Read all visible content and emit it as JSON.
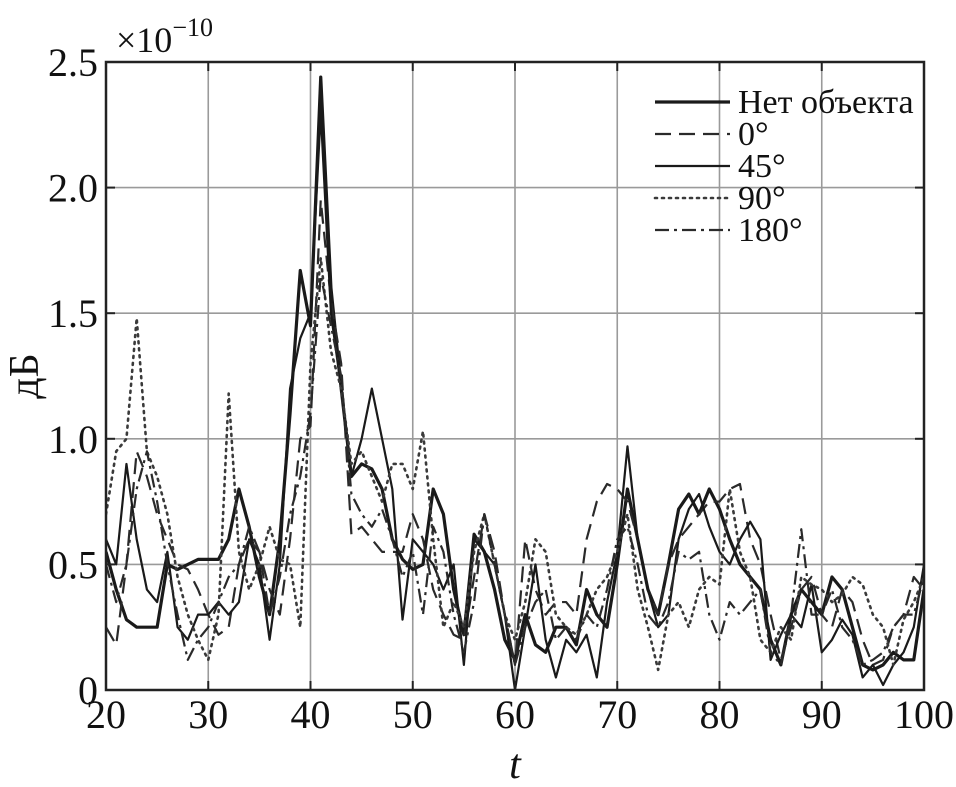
{
  "chart_data": {
    "type": "line",
    "xlabel": "t",
    "ylabel": "дБ",
    "multiplier": "×10",
    "multiplier_exp": "−10",
    "xlim": [
      20,
      100
    ],
    "ylim": [
      0,
      2.5
    ],
    "xticks": [
      20,
      30,
      40,
      50,
      60,
      70,
      80,
      90,
      100
    ],
    "yticks": [
      0,
      0.5,
      1.0,
      1.5,
      2.0,
      2.5
    ],
    "xtick_labels": [
      "20",
      "30",
      "40",
      "50",
      "60",
      "70",
      "80",
      "90",
      "100"
    ],
    "ytick_labels": [
      "0",
      "0.5",
      "1.0",
      "1.5",
      "2.0",
      "2.5"
    ],
    "grid": true,
    "legend_position": "top-right",
    "x": [
      20,
      21,
      22,
      23,
      24,
      25,
      26,
      27,
      28,
      29,
      30,
      31,
      32,
      33,
      34,
      35,
      36,
      37,
      38,
      39,
      40,
      41,
      42,
      43,
      44,
      45,
      46,
      47,
      48,
      49,
      50,
      51,
      52,
      53,
      54,
      55,
      56,
      57,
      58,
      59,
      60,
      61,
      62,
      63,
      64,
      65,
      66,
      67,
      68,
      69,
      70,
      71,
      72,
      73,
      74,
      75,
      76,
      77,
      78,
      79,
      80,
      81,
      82,
      83,
      84,
      85,
      86,
      87,
      88,
      89,
      90,
      91,
      92,
      93,
      94,
      95,
      96,
      97,
      98,
      99,
      100
    ],
    "series": [
      {
        "name": "Нет объекта",
        "style": "solid",
        "width": 3.2,
        "values": [
          0.55,
          0.4,
          0.28,
          0.25,
          0.25,
          0.25,
          0.5,
          0.48,
          0.5,
          0.52,
          0.52,
          0.52,
          0.6,
          0.8,
          0.65,
          0.45,
          0.3,
          0.6,
          1.1,
          1.67,
          1.45,
          2.44,
          1.6,
          1.2,
          0.85,
          0.9,
          0.88,
          0.8,
          0.6,
          0.52,
          0.48,
          0.5,
          0.8,
          0.7,
          0.4,
          0.22,
          0.62,
          0.55,
          0.4,
          0.2,
          0.12,
          0.3,
          0.18,
          0.15,
          0.25,
          0.25,
          0.18,
          0.4,
          0.3,
          0.25,
          0.5,
          0.8,
          0.6,
          0.4,
          0.3,
          0.5,
          0.72,
          0.78,
          0.7,
          0.8,
          0.72,
          0.6,
          0.5,
          0.45,
          0.4,
          0.2,
          0.1,
          0.3,
          0.4,
          0.35,
          0.3,
          0.45,
          0.4,
          0.25,
          0.1,
          0.08,
          0.1,
          0.15,
          0.12,
          0.12,
          0.4
        ]
      },
      {
        "name": "0°",
        "style": "dash",
        "width": 2.2,
        "values": [
          0.25,
          0.18,
          0.5,
          0.95,
          0.85,
          0.7,
          0.6,
          0.5,
          0.48,
          0.4,
          0.3,
          0.22,
          0.25,
          0.5,
          0.6,
          0.55,
          0.4,
          0.3,
          0.6,
          1.0,
          1.05,
          1.95,
          1.55,
          1.3,
          0.62,
          0.65,
          0.6,
          0.55,
          0.55,
          0.55,
          0.7,
          0.6,
          0.4,
          0.3,
          0.22,
          0.2,
          0.45,
          0.7,
          0.55,
          0.3,
          0.1,
          0.6,
          0.4,
          0.3,
          0.35,
          0.35,
          0.3,
          0.6,
          0.75,
          0.82,
          0.8,
          0.75,
          0.6,
          0.4,
          0.3,
          0.5,
          0.6,
          0.65,
          0.7,
          0.75,
          0.75,
          0.8,
          0.82,
          0.6,
          0.5,
          0.3,
          0.12,
          0.25,
          0.4,
          0.45,
          0.3,
          0.25,
          0.4,
          0.35,
          0.2,
          0.1,
          0.12,
          0.25,
          0.3,
          0.45,
          0.4
        ]
      },
      {
        "name": "45°",
        "style": "solid",
        "width": 2.2,
        "values": [
          0.6,
          0.5,
          0.9,
          0.6,
          0.4,
          0.35,
          0.55,
          0.25,
          0.2,
          0.3,
          0.3,
          0.35,
          0.3,
          0.35,
          0.6,
          0.5,
          0.2,
          0.5,
          1.2,
          1.4,
          1.5,
          2.3,
          1.5,
          1.2,
          0.85,
          1.0,
          1.2,
          1.0,
          0.8,
          0.28,
          0.6,
          0.55,
          0.5,
          0.4,
          0.5,
          0.1,
          0.6,
          0.55,
          0.5,
          0.3,
          0.0,
          0.25,
          0.5,
          0.2,
          0.05,
          0.2,
          0.15,
          0.22,
          0.05,
          0.35,
          0.55,
          0.97,
          0.6,
          0.4,
          0.25,
          0.3,
          0.6,
          0.72,
          0.78,
          0.65,
          0.55,
          0.5,
          0.6,
          0.67,
          0.6,
          0.12,
          0.22,
          0.3,
          0.25,
          0.42,
          0.15,
          0.2,
          0.28,
          0.22,
          0.05,
          0.1,
          0.02,
          0.1,
          0.15,
          0.25,
          0.5
        ]
      },
      {
        "name": "90°",
        "style": "dot",
        "width": 2.6,
        "values": [
          0.7,
          0.95,
          1.0,
          1.48,
          0.95,
          0.85,
          0.7,
          0.45,
          0.3,
          0.2,
          0.12,
          0.3,
          1.18,
          0.55,
          0.4,
          0.5,
          0.65,
          0.52,
          0.5,
          0.25,
          1.3,
          1.72,
          1.35,
          1.2,
          0.9,
          0.95,
          0.85,
          0.75,
          0.9,
          0.9,
          0.8,
          1.03,
          0.6,
          0.25,
          0.35,
          0.25,
          0.55,
          0.7,
          0.5,
          0.3,
          0.2,
          0.35,
          0.6,
          0.55,
          0.3,
          0.25,
          0.22,
          0.3,
          0.4,
          0.45,
          0.55,
          0.7,
          0.4,
          0.25,
          0.08,
          0.3,
          0.35,
          0.25,
          0.4,
          0.45,
          0.42,
          0.8,
          0.55,
          0.45,
          0.2,
          0.15,
          0.25,
          0.2,
          0.45,
          0.42,
          0.4,
          0.35,
          0.38,
          0.45,
          0.42,
          0.3,
          0.25,
          0.1,
          0.28,
          0.35,
          0.45
        ]
      },
      {
        "name": "180°",
        "style": "dashdot",
        "width": 2.2,
        "values": [
          0.5,
          0.35,
          0.5,
          0.8,
          0.95,
          0.75,
          0.5,
          0.3,
          0.12,
          0.2,
          0.25,
          0.35,
          0.45,
          0.5,
          0.65,
          0.55,
          0.3,
          0.45,
          0.7,
          0.85,
          1.1,
          1.65,
          1.45,
          1.25,
          0.78,
          0.7,
          0.65,
          0.72,
          0.6,
          0.45,
          0.55,
          0.3,
          0.65,
          0.55,
          0.3,
          0.15,
          0.35,
          0.7,
          0.5,
          0.3,
          0.1,
          0.25,
          0.35,
          0.4,
          0.2,
          0.25,
          0.2,
          0.3,
          0.25,
          0.4,
          0.6,
          0.65,
          0.5,
          0.3,
          0.25,
          0.35,
          0.55,
          0.52,
          0.55,
          0.3,
          0.2,
          0.35,
          0.3,
          0.35,
          0.4,
          0.15,
          0.1,
          0.3,
          0.64,
          0.3,
          0.3,
          0.4,
          0.25,
          0.2,
          0.1,
          0.12,
          0.15,
          0.25,
          0.3,
          0.3,
          0.45
        ]
      }
    ]
  }
}
